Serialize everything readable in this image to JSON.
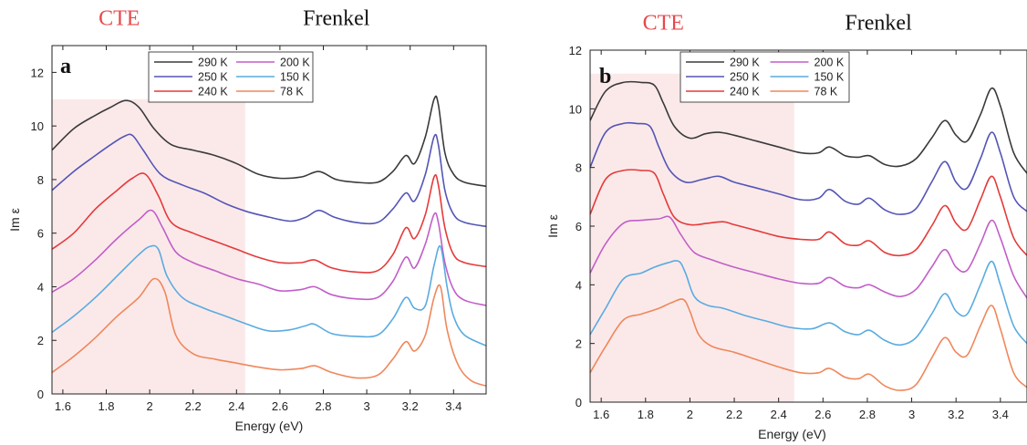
{
  "chart_data": [
    {
      "type": "line",
      "panel_label": "a",
      "xlabel": "Energy (eV)",
      "ylabel": "Im ε",
      "xlim": [
        1.55,
        3.55
      ],
      "ylim": [
        0,
        13
      ],
      "xticks": [
        1.6,
        1.8,
        2,
        2.2,
        2.4,
        2.6,
        2.8,
        3,
        3.2,
        3.4
      ],
      "xtick_labels": [
        "1.6",
        "1.8",
        "2",
        "2.2",
        "2.4",
        "2.6",
        "2.8",
        "3",
        "3.2",
        "3.4"
      ],
      "yticks": [
        0,
        2,
        4,
        6,
        8,
        10,
        12
      ],
      "ytick_labels": [
        "0",
        "2",
        "4",
        "6",
        "8",
        "10",
        "12"
      ],
      "shaded_region": {
        "x_from": 1.55,
        "x_to": 2.44,
        "y_from": 0,
        "y_to": 11.0,
        "color": "#fbe9ea"
      },
      "region_labels": [
        {
          "text": "CTE",
          "x": 1.86,
          "color": "#e8484a"
        },
        {
          "text": "Frenkel",
          "x": 2.86,
          "color": "#111111"
        }
      ],
      "legend": {
        "placement": "top-left",
        "columns": 2
      },
      "series": [
        {
          "name": "290 K",
          "color": "#3a3a3a",
          "x": [
            1.55,
            1.65,
            1.75,
            1.82,
            1.89,
            1.95,
            2.02,
            2.1,
            2.2,
            2.3,
            2.4,
            2.5,
            2.6,
            2.7,
            2.78,
            2.86,
            2.95,
            3.05,
            3.12,
            3.18,
            3.22,
            3.27,
            3.31,
            3.33,
            3.36,
            3.4,
            3.45,
            3.55
          ],
          "values": [
            9.1,
            9.9,
            10.4,
            10.7,
            10.95,
            10.7,
            9.9,
            9.3,
            9.1,
            8.9,
            8.6,
            8.2,
            8.05,
            8.1,
            8.3,
            8.0,
            7.9,
            7.9,
            8.3,
            8.9,
            8.6,
            9.6,
            11.0,
            10.8,
            9.0,
            8.2,
            7.9,
            7.75
          ]
        },
        {
          "name": "200 K",
          "color": "#c25ec8",
          "x": [
            1.55,
            1.65,
            1.75,
            1.85,
            1.95,
            2.01,
            2.06,
            2.12,
            2.2,
            2.3,
            2.4,
            2.5,
            2.6,
            2.7,
            2.76,
            2.84,
            2.95,
            3.05,
            3.12,
            3.18,
            3.22,
            3.27,
            3.31,
            3.33,
            3.36,
            3.4,
            3.45,
            3.55
          ],
          "values": [
            3.8,
            4.3,
            5.0,
            5.8,
            6.5,
            6.85,
            6.2,
            5.3,
            4.9,
            4.6,
            4.3,
            4.1,
            3.85,
            3.9,
            4.0,
            3.7,
            3.55,
            3.6,
            4.2,
            5.1,
            4.7,
            5.6,
            6.7,
            6.4,
            4.9,
            3.9,
            3.5,
            3.3
          ]
        },
        {
          "name": "250 K",
          "color": "#5455b5",
          "x": [
            1.55,
            1.65,
            1.75,
            1.82,
            1.88,
            1.92,
            1.97,
            2.05,
            2.15,
            2.25,
            2.35,
            2.45,
            2.55,
            2.65,
            2.72,
            2.78,
            2.85,
            2.95,
            3.05,
            3.12,
            3.18,
            3.22,
            3.27,
            3.31,
            3.33,
            3.36,
            3.4,
            3.45,
            3.55
          ],
          "values": [
            7.6,
            8.3,
            8.9,
            9.3,
            9.6,
            9.65,
            9.1,
            8.2,
            7.8,
            7.5,
            7.1,
            6.8,
            6.6,
            6.45,
            6.6,
            6.85,
            6.6,
            6.4,
            6.4,
            6.9,
            7.5,
            7.2,
            8.2,
            9.6,
            9.3,
            7.6,
            6.7,
            6.4,
            6.25
          ]
        },
        {
          "name": "150 K",
          "color": "#5aabe0",
          "x": [
            1.55,
            1.65,
            1.75,
            1.85,
            1.95,
            2.0,
            2.04,
            2.08,
            2.15,
            2.25,
            2.35,
            2.45,
            2.55,
            2.65,
            2.72,
            2.76,
            2.84,
            2.95,
            3.05,
            3.12,
            3.18,
            3.22,
            3.27,
            3.31,
            3.34,
            3.37,
            3.4,
            3.45,
            3.55
          ],
          "values": [
            2.3,
            2.9,
            3.6,
            4.4,
            5.2,
            5.5,
            5.4,
            4.4,
            3.6,
            3.2,
            2.9,
            2.6,
            2.35,
            2.4,
            2.55,
            2.6,
            2.25,
            2.15,
            2.2,
            2.8,
            3.6,
            3.2,
            3.3,
            4.8,
            5.5,
            4.0,
            2.9,
            2.2,
            1.8
          ]
        },
        {
          "name": "240 K",
          "color": "#e53a3a",
          "x": [
            1.55,
            1.65,
            1.75,
            1.85,
            1.92,
            1.98,
            2.04,
            2.1,
            2.2,
            2.3,
            2.4,
            2.5,
            2.6,
            2.7,
            2.76,
            2.84,
            2.95,
            3.05,
            3.12,
            3.18,
            3.22,
            3.27,
            3.31,
            3.33,
            3.36,
            3.4,
            3.45,
            3.55
          ],
          "values": [
            5.4,
            6.0,
            6.9,
            7.6,
            8.05,
            8.2,
            7.4,
            6.4,
            6.0,
            5.7,
            5.4,
            5.1,
            4.9,
            4.9,
            5.0,
            4.7,
            4.55,
            4.6,
            5.2,
            6.2,
            5.8,
            6.7,
            8.1,
            7.8,
            6.2,
            5.2,
            4.9,
            4.75
          ]
        },
        {
          "name": "78 K",
          "color": "#f0875a",
          "x": [
            1.55,
            1.65,
            1.75,
            1.85,
            1.95,
            2.02,
            2.07,
            2.12,
            2.2,
            2.3,
            2.4,
            2.5,
            2.6,
            2.7,
            2.76,
            2.84,
            2.95,
            3.05,
            3.12,
            3.18,
            3.22,
            3.27,
            3.31,
            3.34,
            3.37,
            3.42,
            3.48,
            3.55
          ],
          "values": [
            0.8,
            1.4,
            2.1,
            2.9,
            3.6,
            4.3,
            3.8,
            2.2,
            1.5,
            1.3,
            1.15,
            1.0,
            0.9,
            0.95,
            1.05,
            0.8,
            0.6,
            0.7,
            1.3,
            1.95,
            1.6,
            2.2,
            3.6,
            4.0,
            2.4,
            1.1,
            0.5,
            0.3
          ]
        }
      ]
    },
    {
      "type": "line",
      "panel_label": "b",
      "xlabel": "Energy (eV)",
      "ylabel": "Im ε",
      "xlim": [
        1.55,
        3.52
      ],
      "ylim": [
        0,
        12
      ],
      "xticks": [
        1.6,
        1.8,
        2,
        2.2,
        2.4,
        2.6,
        2.8,
        3,
        3.2,
        3.4
      ],
      "xtick_labels": [
        "1.6",
        "1.8",
        "2",
        "2.2",
        "2.4",
        "2.6",
        "2.8",
        "3",
        "3.2",
        "3.4"
      ],
      "yticks": [
        0,
        2,
        4,
        6,
        8,
        10,
        12
      ],
      "ytick_labels": [
        "0",
        "2",
        "4",
        "6",
        "8",
        "10",
        "12"
      ],
      "shaded_region": {
        "x_from": 1.55,
        "x_to": 2.47,
        "y_from": 0,
        "y_to": 11.2,
        "color": "#fbe9ea"
      },
      "region_labels": [
        {
          "text": "CTE",
          "x": 1.88,
          "color": "#e8484a"
        },
        {
          "text": "Frenkel",
          "x": 2.85,
          "color": "#111111"
        }
      ],
      "legend": {
        "placement": "top-left",
        "columns": 2
      },
      "series": [
        {
          "name": "290 K",
          "color": "#3a3a3a",
          "x": [
            1.55,
            1.62,
            1.7,
            1.78,
            1.84,
            1.88,
            1.93,
            2.0,
            2.07,
            2.13,
            2.2,
            2.3,
            2.4,
            2.5,
            2.58,
            2.63,
            2.7,
            2.76,
            2.81,
            2.88,
            2.95,
            3.02,
            3.09,
            3.15,
            3.2,
            3.25,
            3.31,
            3.36,
            3.4,
            3.46,
            3.52
          ],
          "values": [
            9.6,
            10.6,
            10.9,
            10.9,
            10.8,
            10.2,
            9.4,
            9.0,
            9.15,
            9.2,
            9.1,
            8.9,
            8.7,
            8.5,
            8.5,
            8.7,
            8.4,
            8.35,
            8.4,
            8.1,
            8.05,
            8.3,
            9.0,
            9.6,
            9.1,
            8.9,
            9.8,
            10.7,
            10.1,
            8.5,
            7.8
          ]
        },
        {
          "name": "200 K",
          "color": "#c25ec8",
          "x": [
            1.55,
            1.62,
            1.7,
            1.78,
            1.86,
            1.91,
            1.96,
            2.02,
            2.1,
            2.2,
            2.3,
            2.4,
            2.5,
            2.58,
            2.63,
            2.7,
            2.76,
            2.81,
            2.88,
            2.95,
            3.02,
            3.09,
            3.15,
            3.2,
            3.25,
            3.31,
            3.36,
            3.4,
            3.46,
            3.52
          ],
          "values": [
            4.4,
            5.4,
            6.1,
            6.2,
            6.25,
            6.3,
            5.7,
            5.1,
            4.85,
            4.6,
            4.4,
            4.2,
            4.05,
            4.05,
            4.25,
            3.95,
            3.9,
            4.0,
            3.75,
            3.6,
            3.85,
            4.6,
            5.2,
            4.6,
            4.5,
            5.4,
            6.2,
            5.6,
            4.3,
            3.55
          ]
        },
        {
          "name": "250 K",
          "color": "#5455b5",
          "x": [
            1.55,
            1.62,
            1.7,
            1.76,
            1.82,
            1.86,
            1.91,
            1.98,
            2.06,
            2.13,
            2.2,
            2.3,
            2.4,
            2.5,
            2.58,
            2.63,
            2.7,
            2.76,
            2.81,
            2.88,
            2.95,
            3.02,
            3.09,
            3.15,
            3.2,
            3.25,
            3.31,
            3.36,
            3.4,
            3.46,
            3.52
          ],
          "values": [
            8.0,
            9.2,
            9.5,
            9.5,
            9.4,
            8.7,
            7.9,
            7.5,
            7.6,
            7.7,
            7.5,
            7.3,
            7.1,
            6.9,
            6.95,
            7.25,
            6.85,
            6.75,
            6.95,
            6.55,
            6.4,
            6.6,
            7.5,
            8.2,
            7.5,
            7.3,
            8.3,
            9.2,
            8.5,
            7.0,
            6.5
          ]
        },
        {
          "name": "150 K",
          "color": "#5aabe0",
          "x": [
            1.55,
            1.62,
            1.7,
            1.78,
            1.84,
            1.9,
            1.95,
            1.98,
            2.02,
            2.08,
            2.15,
            2.25,
            2.35,
            2.45,
            2.55,
            2.63,
            2.7,
            2.76,
            2.81,
            2.88,
            2.95,
            3.02,
            3.09,
            3.15,
            3.2,
            3.25,
            3.31,
            3.36,
            3.4,
            3.46,
            3.52
          ],
          "values": [
            2.3,
            3.2,
            4.2,
            4.4,
            4.6,
            4.75,
            4.8,
            4.4,
            3.6,
            3.3,
            3.2,
            2.95,
            2.75,
            2.55,
            2.5,
            2.7,
            2.4,
            2.3,
            2.45,
            2.1,
            1.95,
            2.2,
            3.0,
            3.7,
            3.1,
            3.0,
            4.0,
            4.8,
            4.0,
            2.6,
            2.0
          ]
        },
        {
          "name": "240 K",
          "color": "#e53a3a",
          "x": [
            1.55,
            1.62,
            1.7,
            1.78,
            1.84,
            1.88,
            1.93,
            2.0,
            2.08,
            2.15,
            2.2,
            2.3,
            2.4,
            2.5,
            2.58,
            2.63,
            2.7,
            2.76,
            2.81,
            2.88,
            2.95,
            3.02,
            3.09,
            3.15,
            3.2,
            3.25,
            3.31,
            3.36,
            3.4,
            3.46,
            3.52
          ],
          "values": [
            6.4,
            7.6,
            7.9,
            7.9,
            7.8,
            7.1,
            6.3,
            6.05,
            6.1,
            6.15,
            6.05,
            5.85,
            5.65,
            5.55,
            5.55,
            5.8,
            5.4,
            5.35,
            5.5,
            5.1,
            5.0,
            5.2,
            6.0,
            6.7,
            6.1,
            5.9,
            6.9,
            7.7,
            7.0,
            5.6,
            5.0
          ]
        },
        {
          "name": "78 K",
          "color": "#f0875a",
          "x": [
            1.55,
            1.62,
            1.7,
            1.78,
            1.86,
            1.92,
            1.97,
            2.0,
            2.04,
            2.1,
            2.2,
            2.3,
            2.4,
            2.5,
            2.58,
            2.63,
            2.7,
            2.76,
            2.81,
            2.88,
            2.95,
            3.02,
            3.09,
            3.15,
            3.2,
            3.25,
            3.31,
            3.36,
            3.4,
            3.46,
            3.52
          ],
          "values": [
            1.0,
            1.9,
            2.8,
            3.0,
            3.2,
            3.4,
            3.5,
            3.1,
            2.3,
            1.9,
            1.7,
            1.45,
            1.2,
            1.0,
            1.0,
            1.15,
            0.85,
            0.8,
            0.95,
            0.55,
            0.4,
            0.6,
            1.5,
            2.2,
            1.7,
            1.6,
            2.6,
            3.3,
            2.5,
            1.0,
            0.5
          ]
        }
      ]
    }
  ]
}
